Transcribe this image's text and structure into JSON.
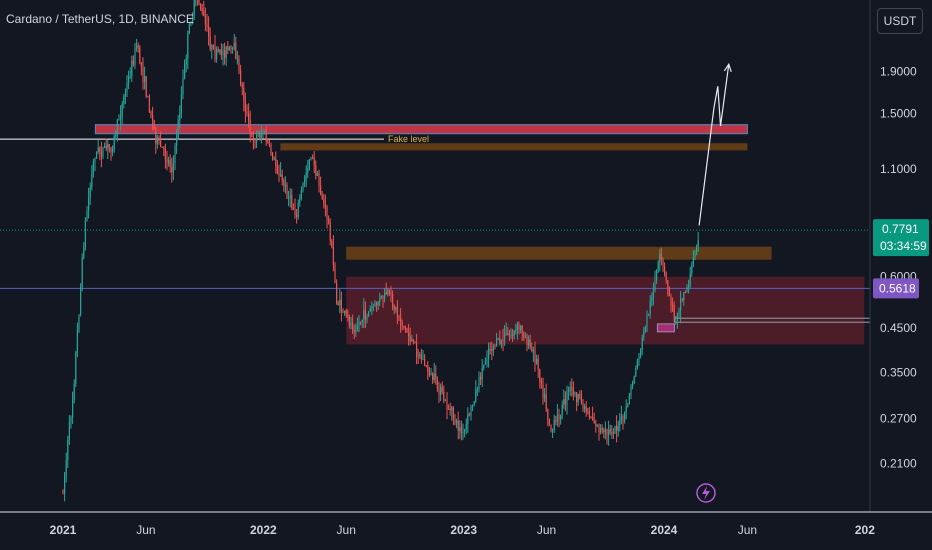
{
  "header": {
    "symbol_title": "Cardano / TetherUS, 1D, BINANCE",
    "currency_button": "USDT"
  },
  "chart_data": {
    "type": "candlestick",
    "scale": "log",
    "grid": false,
    "y_axis": {
      "ticks": [
        1.9,
        1.5,
        1.1,
        0.6,
        0.45,
        0.35,
        0.27,
        0.21
      ],
      "tick_labels": [
        "1.9000",
        "1.5000",
        "1.1000",
        "0.6000",
        "0.4500",
        "0.3500",
        "0.2700",
        "0.2100"
      ]
    },
    "x_axis": {
      "ticks": [
        "2021",
        "Jun",
        "2022",
        "Jun",
        "2023",
        "Jun",
        "2024",
        "Jun",
        "202"
      ],
      "ticks_major": [
        true,
        false,
        true,
        false,
        true,
        false,
        true,
        false,
        true
      ]
    },
    "price_badges": [
      {
        "name": "last-price",
        "value": 0.7791,
        "label": "0.7791",
        "sublabel": "03:34:59",
        "color": "#089981"
      },
      {
        "name": "horizontal-line",
        "value": 0.5618,
        "label": "0.5618",
        "color": "#7e57c2"
      }
    ],
    "annotations": {
      "fake_level_text": "Fake level",
      "fake_level_price": 1.3
    },
    "zones": [
      {
        "name": "resistance-zone-top",
        "kind": "supply",
        "color": "#e03a4a",
        "price_high": 1.41,
        "price_low": 1.34,
        "start": "2021-03-01",
        "end": "2024-06-01"
      },
      {
        "name": "orange-zone-upper",
        "kind": "supply",
        "color": "#7a4a14",
        "price_high": 1.27,
        "price_low": 1.22,
        "start": "2022-02-01",
        "end": "2024-06-01"
      },
      {
        "name": "orange-zone-middle",
        "kind": "demand",
        "color": "#7a4a14",
        "price_high": 0.71,
        "price_low": 0.66,
        "start": "2022-06-01",
        "end": "2024-07-15"
      },
      {
        "name": "demand-zone-large",
        "kind": "demand",
        "color": "#6b1f2e",
        "price_high": 0.6,
        "price_low": 0.41,
        "start": "2022-06-01",
        "end": "2024-12-31"
      },
      {
        "name": "small-demand-box",
        "kind": "demand",
        "color": "#b0307a",
        "price_high": 0.46,
        "price_low": 0.44,
        "start": "2023-12-20",
        "end": "2024-01-20"
      }
    ],
    "projection_arrow": {
      "points": [
        {
          "date": "2024-03-05",
          "price": 0.8
        },
        {
          "date": "2024-04-01",
          "price": 1.55
        },
        {
          "date": "2024-04-08",
          "price": 1.75
        },
        {
          "date": "2024-04-13",
          "price": 1.4
        },
        {
          "date": "2024-04-28",
          "price": 1.98
        }
      ]
    },
    "price_path": [
      {
        "date": "2021-01-01",
        "price": 0.18
      },
      {
        "date": "2021-01-20",
        "price": 0.32
      },
      {
        "date": "2021-02-10",
        "price": 0.8
      },
      {
        "date": "2021-02-28",
        "price": 1.2
      },
      {
        "date": "2021-04-01",
        "price": 1.25
      },
      {
        "date": "2021-04-15",
        "price": 1.5
      },
      {
        "date": "2021-05-15",
        "price": 2.2
      },
      {
        "date": "2021-06-20",
        "price": 1.3
      },
      {
        "date": "2021-07-20",
        "price": 1.1
      },
      {
        "date": "2021-08-20",
        "price": 2.5
      },
      {
        "date": "2021-09-02",
        "price": 2.95
      },
      {
        "date": "2021-10-01",
        "price": 2.1
      },
      {
        "date": "2021-11-10",
        "price": 2.15
      },
      {
        "date": "2021-12-10",
        "price": 1.3
      },
      {
        "date": "2022-01-01",
        "price": 1.35
      },
      {
        "date": "2022-02-01",
        "price": 1.05
      },
      {
        "date": "2022-03-01",
        "price": 0.85
      },
      {
        "date": "2022-03-28",
        "price": 1.2
      },
      {
        "date": "2022-05-01",
        "price": 0.8
      },
      {
        "date": "2022-05-15",
        "price": 0.52
      },
      {
        "date": "2022-06-15",
        "price": 0.45
      },
      {
        "date": "2022-08-15",
        "price": 0.55
      },
      {
        "date": "2022-09-15",
        "price": 0.45
      },
      {
        "date": "2022-11-10",
        "price": 0.33
      },
      {
        "date": "2022-12-31",
        "price": 0.245
      },
      {
        "date": "2023-02-15",
        "price": 0.4
      },
      {
        "date": "2023-04-15",
        "price": 0.45
      },
      {
        "date": "2023-05-15",
        "price": 0.37
      },
      {
        "date": "2023-06-10",
        "price": 0.25
      },
      {
        "date": "2023-07-15",
        "price": 0.32
      },
      {
        "date": "2023-09-15",
        "price": 0.245
      },
      {
        "date": "2023-10-20",
        "price": 0.27
      },
      {
        "date": "2023-11-15",
        "price": 0.38
      },
      {
        "date": "2023-12-25",
        "price": 0.67
      },
      {
        "date": "2024-01-20",
        "price": 0.48
      },
      {
        "date": "2024-02-15",
        "price": 0.58
      },
      {
        "date": "2024-03-05",
        "price": 0.78
      }
    ]
  },
  "colors": {
    "up": "#26a69a",
    "down": "#ef5350",
    "background": "#131722",
    "axis_text": "#d1d4dc",
    "last_price_line": "#089981",
    "horizontal_line": "#5b5fc7",
    "white_line": "#ffffff"
  },
  "footer": {
    "lightning_icon": "lightning-icon"
  }
}
